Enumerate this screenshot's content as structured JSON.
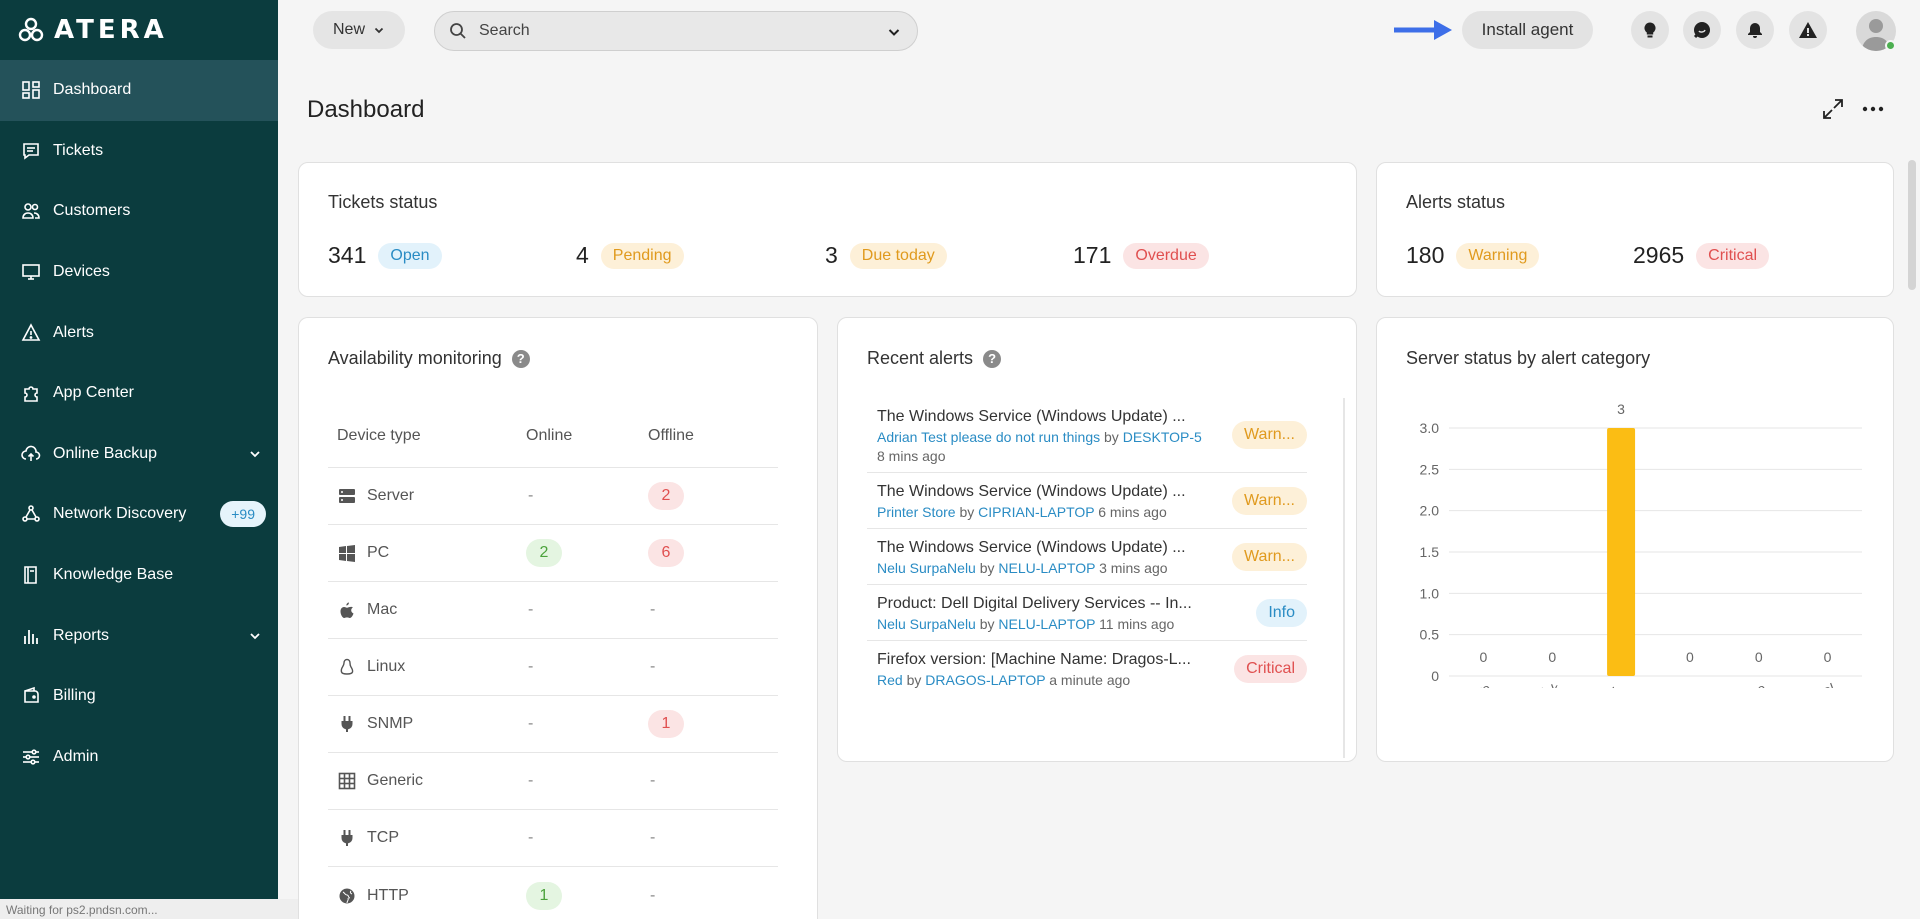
{
  "brand": {
    "name": "ATERA"
  },
  "sidebar": {
    "items": [
      {
        "label": "Dashboard",
        "icon": "dashboard-icon",
        "active": true
      },
      {
        "label": "Tickets",
        "icon": "tickets-icon"
      },
      {
        "label": "Customers",
        "icon": "customers-icon"
      },
      {
        "label": "Devices",
        "icon": "devices-icon"
      },
      {
        "label": "Alerts",
        "icon": "alerts-icon"
      },
      {
        "label": "App Center",
        "icon": "app-center-icon"
      },
      {
        "label": "Online Backup",
        "icon": "backup-icon",
        "expandable": true
      },
      {
        "label": "Network Discovery",
        "icon": "network-icon",
        "badge": "+99"
      },
      {
        "label": "Knowledge Base",
        "icon": "knowledge-icon"
      },
      {
        "label": "Reports",
        "icon": "reports-icon",
        "expandable": true
      },
      {
        "label": "Billing",
        "icon": "billing-icon"
      },
      {
        "label": "Admin",
        "icon": "admin-icon"
      }
    ]
  },
  "statusbar": {
    "text": "Waiting for ps2.pndsn.com..."
  },
  "topbar": {
    "new_label": "New",
    "search_placeholder": "Search",
    "install_label": "Install agent"
  },
  "page": {
    "title": "Dashboard"
  },
  "tickets_status": {
    "title": "Tickets status",
    "stats": [
      {
        "value": "341",
        "label": "Open"
      },
      {
        "value": "4",
        "label": "Pending"
      },
      {
        "value": "3",
        "label": "Due today"
      },
      {
        "value": "171",
        "label": "Overdue"
      }
    ]
  },
  "alerts_status": {
    "title": "Alerts status",
    "stats": [
      {
        "value": "180",
        "label": "Warning"
      },
      {
        "value": "2965",
        "label": "Critical"
      }
    ]
  },
  "availability": {
    "title": "Availability monitoring",
    "columns": [
      "Device type",
      "Online",
      "Offline"
    ],
    "rows": [
      {
        "type": "Server",
        "online": "-",
        "offline": "2"
      },
      {
        "type": "PC",
        "online": "2",
        "offline": "6"
      },
      {
        "type": "Mac",
        "online": "-",
        "offline": "-"
      },
      {
        "type": "Linux",
        "online": "-",
        "offline": "-"
      },
      {
        "type": "SNMP",
        "online": "-",
        "offline": "1"
      },
      {
        "type": "Generic",
        "online": "-",
        "offline": "-"
      },
      {
        "type": "TCP",
        "online": "-",
        "offline": "-"
      },
      {
        "type": "HTTP",
        "online": "1",
        "offline": "-"
      }
    ]
  },
  "recent_alerts": {
    "title": "Recent alerts",
    "items": [
      {
        "title": "The Windows Service (Windows Update) ...",
        "customer": "Adrian Test please do not run things",
        "by": "by",
        "device": "DESKTOP-5",
        "time": "8 mins ago",
        "severity": "Warn..."
      },
      {
        "title": "The Windows Service (Windows Update) ...",
        "customer": "Printer Store",
        "by": "by",
        "device": "CIPRIAN-LAPTOP",
        "time": "6 mins ago",
        "severity": "Warn..."
      },
      {
        "title": "The Windows Service (Windows Update) ...",
        "customer": "Nelu SurpaNelu",
        "by": "by",
        "device": "NELU-LAPTOP",
        "time": "3 mins ago",
        "severity": "Warn..."
      },
      {
        "title": "Product: Dell Digital Delivery Services -- In...",
        "customer": "Nelu SurpaNelu",
        "by": "by",
        "device": "NELU-LAPTOP",
        "time": "11 mins ago",
        "severity": "Info"
      },
      {
        "title": "Firefox version: [Machine Name: Dragos-L...",
        "customer": "Red",
        "by": "by",
        "device": "DRAGOS-LAPTOP",
        "time": "a minute ago",
        "severity": "Critical"
      }
    ]
  },
  "server_status": {
    "title": "Server status by alert category"
  },
  "chart_data": {
    "type": "bar",
    "categories": [
      "Hardware",
      "Disk",
      "Availabi...",
      "Performa...",
      "Exchange",
      "General"
    ],
    "values": [
      0,
      0,
      3,
      0,
      0,
      0
    ],
    "ylim": [
      0,
      3
    ],
    "yticks": [
      "0",
      "0.5",
      "1.0",
      "1.5",
      "2.0",
      "2.5",
      "3.0"
    ],
    "data_labels": [
      "0",
      "0",
      "3",
      "0",
      "0",
      "0"
    ],
    "bar_color": "#fbbd14",
    "grid": true
  },
  "colors": {
    "sidebar": "#0b3c3e",
    "sidebar_active": "#24525a",
    "accent_blue": "#2a8cc4",
    "arrow_blue": "#3d6ee8"
  }
}
